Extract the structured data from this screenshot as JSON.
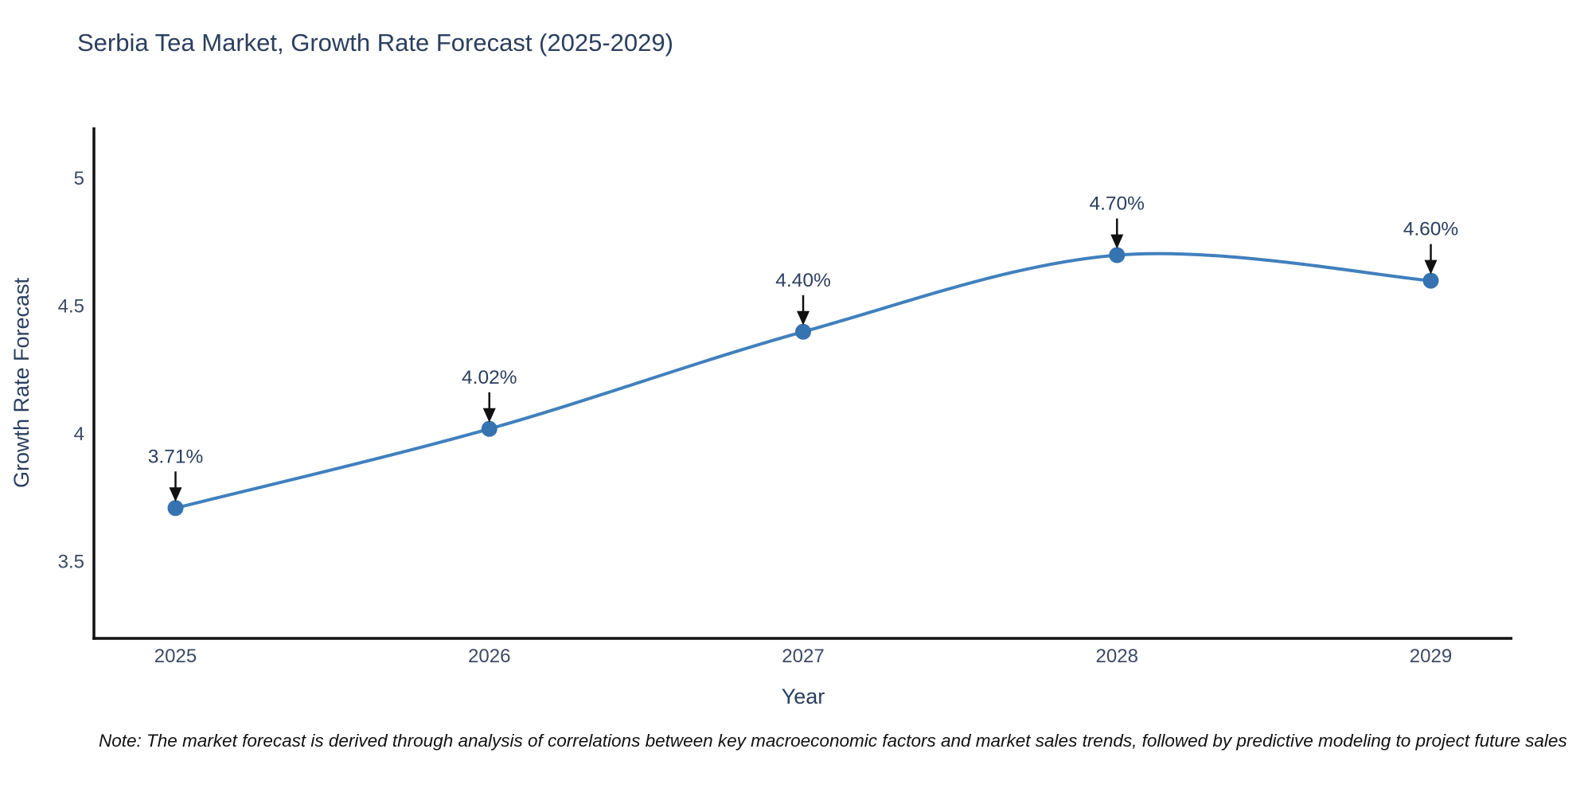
{
  "title": "Serbia Tea Market, Growth Rate Forecast (2025-2029)",
  "note": "Note: The market forecast is derived through analysis of correlations between key macroeconomic factors and market sales trends, followed by predictive modeling to project future sales",
  "colors": {
    "line": "#4080bd",
    "marker": "#3573b1",
    "axis_line": "#111111",
    "title_text": "#2a3f5f",
    "tick_text": "#3c4a63",
    "axis_title_text": "#2a3f5f",
    "annotation_text": "#2a3f5f",
    "arrow": "#111111",
    "background": "#ffffff"
  },
  "chart_data": {
    "type": "line",
    "x": [
      2025,
      2026,
      2027,
      2028,
      2029
    ],
    "values": [
      3.71,
      4.02,
      4.4,
      4.7,
      4.6
    ],
    "point_labels": [
      "3.71%",
      "4.02%",
      "4.40%",
      "4.70%",
      "4.60%"
    ],
    "title": "Serbia Tea Market, Growth Rate Forecast (2025-2029)",
    "xlabel": "Year",
    "ylabel": "Growth Rate Forecast",
    "xlim": [
      2024.74,
      2029.26
    ],
    "ylim": [
      3.2,
      5.2
    ],
    "xticks": [
      2025,
      2026,
      2027,
      2028,
      2029
    ],
    "yticks": [
      3.5,
      4,
      4.5,
      5
    ],
    "ytick_labels": [
      "3.5",
      "4",
      "4.5",
      "5"
    ],
    "grid": false,
    "legend": "none",
    "line_shape": "spline",
    "annotations": "arrow-down-to-point"
  }
}
